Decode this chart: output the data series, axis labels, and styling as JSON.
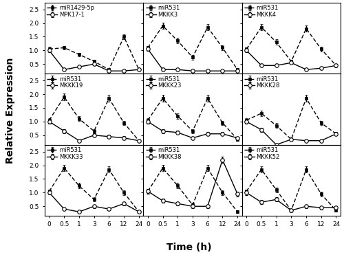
{
  "x_ticks": [
    0,
    0.5,
    1,
    3,
    6,
    12,
    24
  ],
  "x_tick_labels": [
    "0",
    "0.5",
    "1",
    "3",
    "6",
    "12",
    "24"
  ],
  "ylim": [
    0.15,
    2.75
  ],
  "yticks": [
    0.5,
    1.0,
    1.5,
    2.0,
    2.5
  ],
  "ylabel": "Relative Expression",
  "xlabel": "Time (h)",
  "subplots": [
    {
      "mir_label": "miR1429-5p",
      "target_label": "MPK17-1",
      "mir_y": [
        1.05,
        1.1,
        0.85,
        0.6,
        0.3,
        1.5,
        0.3
      ],
      "mir_err": [
        0.08,
        0.07,
        0.07,
        0.05,
        0.04,
        0.1,
        0.05
      ],
      "tgt_y": [
        1.0,
        0.3,
        0.4,
        0.5,
        0.25,
        0.25,
        0.3
      ],
      "tgt_err": [
        0.07,
        0.05,
        0.05,
        0.05,
        0.03,
        0.04,
        0.04
      ]
    },
    {
      "mir_label": "miR531",
      "target_label": "MKKK3",
      "mir_y": [
        1.1,
        1.9,
        1.35,
        0.75,
        1.85,
        1.1,
        0.3
      ],
      "mir_err": [
        0.07,
        0.12,
        0.1,
        0.08,
        0.12,
        0.08,
        0.05
      ],
      "tgt_y": [
        1.05,
        0.3,
        0.3,
        0.25,
        0.25,
        0.25,
        0.25
      ],
      "tgt_err": [
        0.07,
        0.04,
        0.04,
        0.03,
        0.03,
        0.03,
        0.03
      ]
    },
    {
      "mir_label": "miR531",
      "target_label": "MKKK4",
      "mir_y": [
        1.05,
        1.85,
        1.3,
        0.6,
        1.8,
        1.05,
        0.45
      ],
      "mir_err": [
        0.07,
        0.12,
        0.1,
        0.07,
        0.12,
        0.08,
        0.06
      ],
      "tgt_y": [
        1.0,
        0.45,
        0.45,
        0.55,
        0.3,
        0.35,
        0.45
      ],
      "tgt_err": [
        0.07,
        0.05,
        0.05,
        0.05,
        0.04,
        0.04,
        0.05
      ]
    },
    {
      "mir_label": "miR531",
      "target_label": "MKKK19",
      "mir_y": [
        1.05,
        1.9,
        1.1,
        0.65,
        1.85,
        0.95,
        0.3
      ],
      "mir_err": [
        0.08,
        0.12,
        0.09,
        0.07,
        0.12,
        0.08,
        0.05
      ],
      "tgt_y": [
        1.0,
        0.65,
        0.3,
        0.5,
        0.45,
        0.4,
        0.3
      ],
      "tgt_err": [
        0.07,
        0.07,
        0.04,
        0.06,
        0.06,
        0.06,
        0.04
      ]
    },
    {
      "mir_label": "miR531",
      "target_label": "MKKK23",
      "mir_y": [
        1.05,
        1.85,
        1.2,
        0.65,
        1.85,
        0.95,
        0.35
      ],
      "mir_err": [
        0.07,
        0.12,
        0.1,
        0.08,
        0.12,
        0.08,
        0.05
      ],
      "tgt_y": [
        1.0,
        0.65,
        0.6,
        0.4,
        0.55,
        0.55,
        0.4
      ],
      "tgt_err": [
        0.07,
        0.07,
        0.06,
        0.05,
        0.06,
        0.06,
        0.05
      ]
    },
    {
      "mir_label": "miR531",
      "target_label": "MKKK28",
      "mir_y": [
        1.05,
        1.3,
        0.85,
        0.35,
        1.85,
        0.95,
        0.55
      ],
      "mir_err": [
        0.08,
        0.1,
        0.09,
        0.06,
        0.12,
        0.08,
        0.06
      ],
      "tgt_y": [
        1.0,
        0.7,
        0.15,
        0.35,
        0.3,
        0.3,
        0.55
      ],
      "tgt_err": [
        0.08,
        0.07,
        0.04,
        0.05,
        0.04,
        0.04,
        0.06
      ]
    },
    {
      "mir_label": "miR531",
      "target_label": "MKKK33",
      "mir_y": [
        1.05,
        1.9,
        1.25,
        0.75,
        1.85,
        1.0,
        0.3
      ],
      "mir_err": [
        0.07,
        0.12,
        0.1,
        0.08,
        0.12,
        0.08,
        0.05
      ],
      "tgt_y": [
        1.0,
        0.4,
        0.3,
        0.5,
        0.4,
        0.6,
        0.3
      ],
      "tgt_err": [
        0.07,
        0.05,
        0.04,
        0.06,
        0.05,
        0.06,
        0.04
      ]
    },
    {
      "mir_label": "miR531",
      "target_label": "MKKK38",
      "mir_y": [
        1.05,
        1.9,
        1.25,
        0.55,
        1.9,
        1.0,
        0.3
      ],
      "mir_err": [
        0.07,
        0.12,
        0.1,
        0.07,
        0.12,
        0.08,
        0.05
      ],
      "tgt_y": [
        1.05,
        0.7,
        0.6,
        0.5,
        0.5,
        2.2,
        0.95
      ],
      "tgt_err": [
        0.08,
        0.07,
        0.06,
        0.06,
        0.06,
        0.12,
        0.09
      ]
    },
    {
      "mir_label": "miR531",
      "target_label": "MKKK52",
      "mir_y": [
        1.05,
        1.85,
        1.1,
        0.35,
        1.85,
        0.95,
        0.35
      ],
      "mir_err": [
        0.07,
        0.12,
        0.09,
        0.06,
        0.12,
        0.08,
        0.05
      ],
      "tgt_y": [
        1.0,
        0.65,
        0.75,
        0.35,
        0.5,
        0.45,
        0.45
      ],
      "tgt_err": [
        0.08,
        0.07,
        0.07,
        0.05,
        0.06,
        0.06,
        0.06
      ]
    }
  ],
  "mir_color": "black",
  "tgt_color": "black",
  "mir_linestyle": "dashed",
  "tgt_linestyle": "solid",
  "mir_marker": "s",
  "tgt_marker": "o",
  "mir_markersize": 3.0,
  "tgt_markersize": 4.0,
  "linewidth": 1.0,
  "legend_fontsize": 6.0,
  "tick_fontsize": 6.5,
  "label_fontsize": 10,
  "bg_color": "white"
}
